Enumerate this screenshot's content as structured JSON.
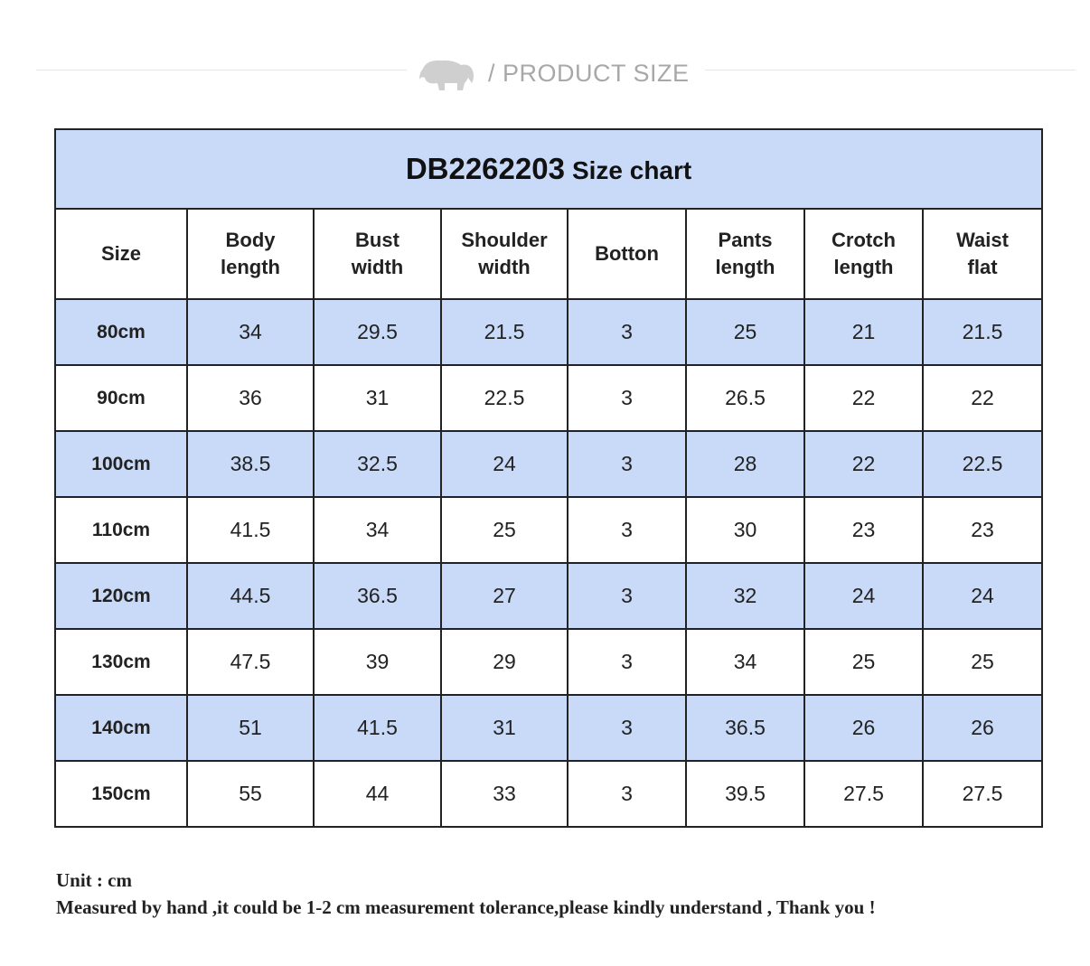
{
  "header": {
    "title": "/ PRODUCT SIZE"
  },
  "table": {
    "title": {
      "code": "DB2262203",
      "text": "Size chart"
    },
    "columns": [
      [
        "Size"
      ],
      [
        "Body",
        "length"
      ],
      [
        "Bust",
        "width"
      ],
      [
        "Shoulder",
        "width"
      ],
      [
        "Botton"
      ],
      [
        "Pants",
        "length"
      ],
      [
        "Crotch",
        "length"
      ],
      [
        "Waist",
        "flat"
      ]
    ],
    "rows": [
      [
        "80cm",
        "34",
        "29.5",
        "21.5",
        "3",
        "25",
        "21",
        "21.5"
      ],
      [
        "90cm",
        "36",
        "31",
        "22.5",
        "3",
        "26.5",
        "22",
        "22"
      ],
      [
        "100cm",
        "38.5",
        "32.5",
        "24",
        "3",
        "28",
        "22",
        "22.5"
      ],
      [
        "110cm",
        "41.5",
        "34",
        "25",
        "3",
        "30",
        "23",
        "23"
      ],
      [
        "120cm",
        "44.5",
        "36.5",
        "27",
        "3",
        "32",
        "24",
        "24"
      ],
      [
        "130cm",
        "47.5",
        "39",
        "29",
        "3",
        "34",
        "25",
        "25"
      ],
      [
        "140cm",
        "51",
        "41.5",
        "31",
        "3",
        "36.5",
        "26",
        "26"
      ],
      [
        "150cm",
        "55",
        "44",
        "33",
        "3",
        "39.5",
        "27.5",
        "27.5"
      ]
    ]
  },
  "notes": [
    "Unit : cm",
    "Measured by hand ,it could be 1-2 cm measurement tolerance,please kindly understand , Thank you !"
  ]
}
